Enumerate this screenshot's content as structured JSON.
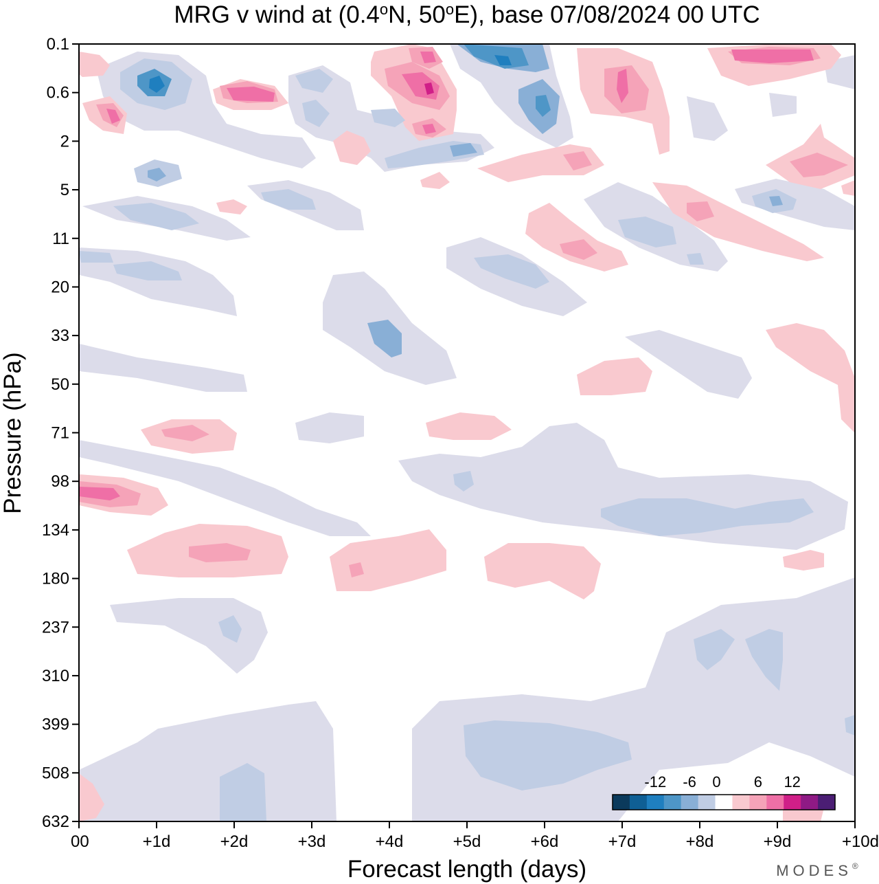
{
  "chart_data": {
    "type": "heatmap",
    "title_main": "MRG v wind at (0.4",
    "title_deg1": "o",
    "title_mid": "N, 50",
    "title_deg2": "o",
    "title_end": "E),  base 07/08/2024  00 UTC",
    "xlabel": "Forecast length (days)",
    "ylabel": "Pressure (hPa)",
    "x_ticks": [
      "00",
      "+1d",
      "+2d",
      "+3d",
      "+4d",
      "+5d",
      "+6d",
      "+7d",
      "+8d",
      "+9d",
      "+10d"
    ],
    "x_range_days": [
      0,
      10
    ],
    "y_ticks": [
      "0.1",
      "0.6",
      "2",
      "5",
      "11",
      "20",
      "33",
      "50",
      "71",
      "98",
      "134",
      "180",
      "237",
      "310",
      "399",
      "508",
      "632"
    ],
    "y_scale": "log-pressure, top to bottom 0.1 to 632 hPa",
    "colorbar": {
      "tick_labels": [
        "-12",
        "-6",
        "0",
        "6",
        "12"
      ],
      "levels": [
        -18,
        -15,
        -12,
        -9,
        -6,
        -3,
        0,
        3,
        6,
        9,
        12,
        15,
        18
      ],
      "colors": [
        "#0b3a5c",
        "#0f5f95",
        "#1f7fbf",
        "#4e96c7",
        "#89afd6",
        "#c0cde4",
        "#ffffff",
        "#f9c9cf",
        "#f5a3b8",
        "#ef6fa6",
        "#d01f88",
        "#8f1a85",
        "#4b1e74"
      ]
    },
    "features": [
      {
        "level": -6,
        "days": 1.0,
        "hPa": 0.6
      },
      {
        "level": -12,
        "days": 1.0,
        "hPa": 0.6
      },
      {
        "level": 6,
        "days": 0.5,
        "hPa": 1.0
      },
      {
        "level": 6,
        "days": 2.1,
        "hPa": 0.6
      },
      {
        "level": 9,
        "days": 2.1,
        "hPa": 0.6
      },
      {
        "level": -6,
        "days": 1.0,
        "hPa": 4.0
      },
      {
        "level": -6,
        "days": 1.0,
        "hPa": 8.0
      },
      {
        "level": -6,
        "days": 3.0,
        "hPa": 0.6
      },
      {
        "level": -6,
        "days": 3.0,
        "hPa": 1.5
      },
      {
        "level": 9,
        "days": 4.5,
        "hPa": 0.5
      },
      {
        "level": 12,
        "days": 4.5,
        "hPa": 0.3
      },
      {
        "level": -9,
        "days": 5.5,
        "hPa": 0.2
      },
      {
        "level": -6,
        "days": 6.0,
        "hPa": 1.0
      },
      {
        "level": -6,
        "days": 5.0,
        "hPa": 3.0
      },
      {
        "level": 6,
        "days": 7.0,
        "hPa": 0.5
      },
      {
        "level": 6,
        "days": 9.2,
        "hPa": 0.2
      },
      {
        "level": 6,
        "days": 9.2,
        "hPa": 4.0
      },
      {
        "level": -6,
        "days": 9.0,
        "hPa": 6.0
      },
      {
        "level": 6,
        "days": 8.0,
        "hPa": 7.0
      },
      {
        "level": -6,
        "days": 7.5,
        "hPa": 10.0
      },
      {
        "level": -6,
        "days": 5.5,
        "hPa": 16.0
      },
      {
        "level": -6,
        "days": 4.0,
        "hPa": 30.0
      },
      {
        "level": 6,
        "days": 1.5,
        "hPa": 70.0
      },
      {
        "level": 9,
        "days": 0.4,
        "hPa": 105.0
      },
      {
        "level": 6,
        "days": 2.0,
        "hPa": 165.0
      },
      {
        "level": 6,
        "days": 3.5,
        "hPa": 175.0
      },
      {
        "level": -6,
        "days": 8.0,
        "hPa": 115.0
      },
      {
        "level": -6,
        "days": 2.0,
        "hPa": 230.0
      },
      {
        "level": -6,
        "days": 9.0,
        "hPa": 290.0
      },
      {
        "level": -6,
        "days": 5.5,
        "hPa": 450.0
      },
      {
        "level": -6,
        "days": 2.2,
        "hPa": 580.0
      }
    ]
  },
  "brand": {
    "text": "MODES",
    "mark": "®"
  }
}
